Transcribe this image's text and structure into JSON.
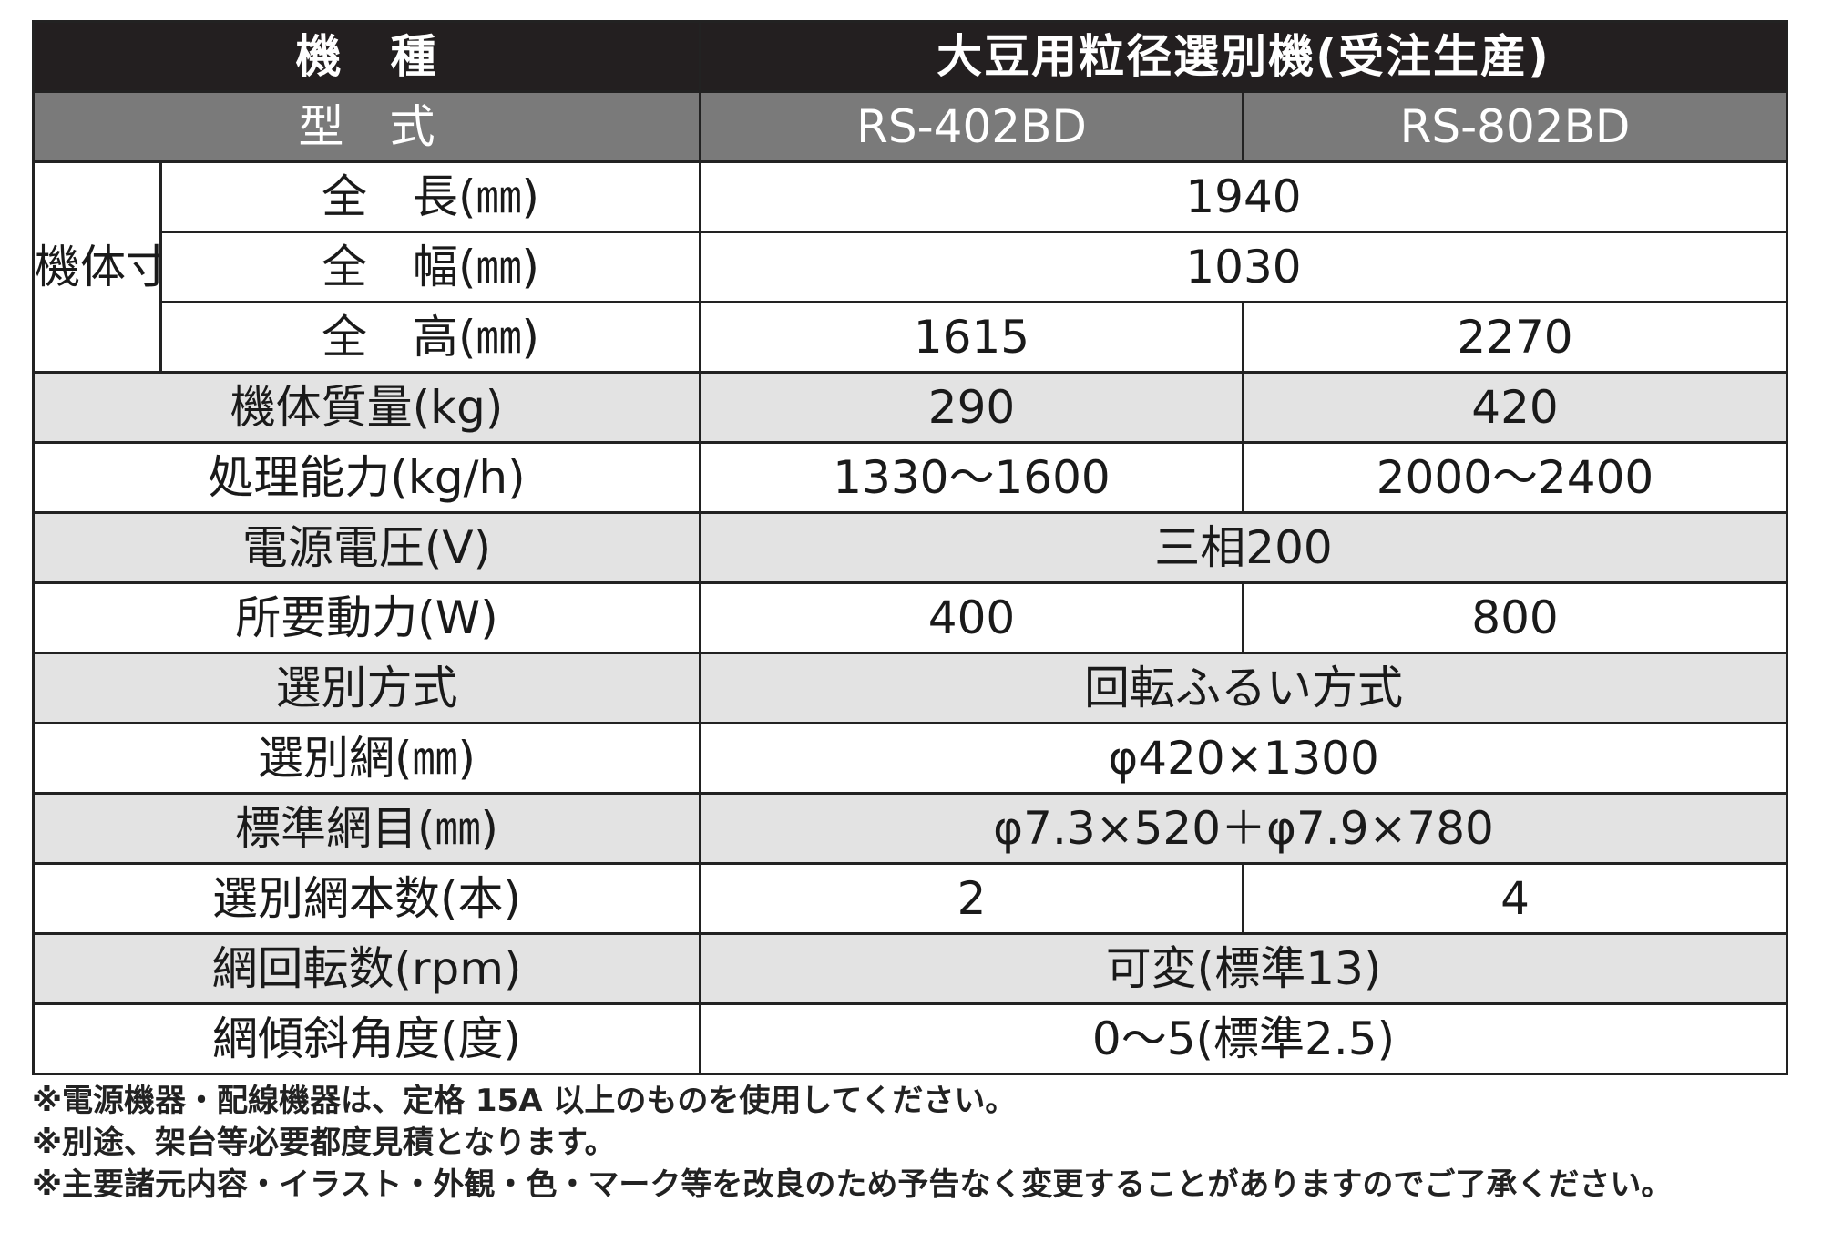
{
  "header": {
    "model_label": "機　種",
    "model_value": "大豆用粒径選別機(受注生産)",
    "type_label": "型　式",
    "types": [
      "RS-402BD",
      "RS-802BD"
    ]
  },
  "dimensions": {
    "group_label": "機体寸法",
    "length_label": "全　長(㎜)",
    "length_value": "1940",
    "width_label": "全　幅(㎜)",
    "width_value": "1030",
    "height_label": "全　高(㎜)",
    "height_values": [
      "1615",
      "2270"
    ]
  },
  "rows": {
    "mass": {
      "label": "機体質量(kg)",
      "values": [
        "290",
        "420"
      ]
    },
    "capacity": {
      "label": "処理能力(kg/h)",
      "values": [
        "1330〜1600",
        "2000〜2400"
      ]
    },
    "voltage": {
      "label": "電源電圧(V)",
      "value": "三相200"
    },
    "power": {
      "label": "所要動力(W)",
      "values": [
        "400",
        "800"
      ]
    },
    "method": {
      "label": "選別方式",
      "value": "回転ふるい方式"
    },
    "net": {
      "label": "選別網(㎜)",
      "value": "φ420×1300"
    },
    "mesh": {
      "label": "標準網目(㎜)",
      "value": "φ7.3×520＋φ7.9×780"
    },
    "net_count": {
      "label": "選別網本数(本)",
      "values": [
        "2",
        "4"
      ]
    },
    "rotation": {
      "label": "網回転数(rpm)",
      "value": "可変(標準13)"
    },
    "tilt": {
      "label": "網傾斜角度(度)",
      "value": "0〜5(標準2.5)"
    }
  },
  "notes": [
    "※電源機器・配線機器は、定格 15A 以上のものを使用してください。",
    "※別途、架台等必要都度見積となります。",
    "※主要諸元内容・イラスト・外観・色・マーク等を改良のため予告なく変更することがありますのでご了承ください。"
  ]
}
